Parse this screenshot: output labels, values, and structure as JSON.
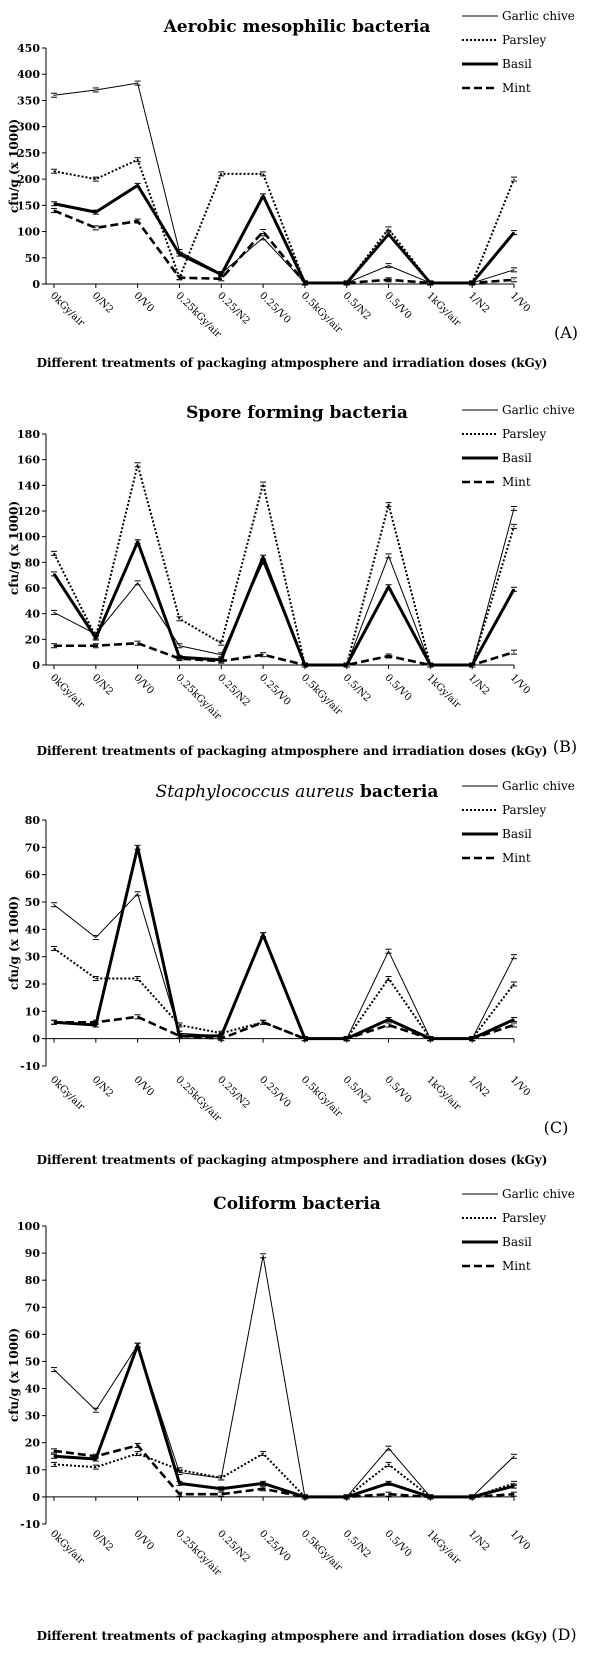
{
  "chart_data": [
    {
      "type": "line",
      "panel_label": "(A)",
      "title": "Aerobic mesophilic bacteria",
      "ylabel": "cfu/g (x 1000)",
      "xlabel": "Different treatments of packaging atmposphere and irradiation doses (kGy)",
      "ylim": [
        0,
        450
      ],
      "yticks": [
        0,
        50,
        100,
        150,
        200,
        250,
        300,
        350,
        400,
        450
      ],
      "categories": [
        "0kGy/air",
        "0/N2",
        "0/V0",
        "0.25kGy/air",
        "0.25/N2",
        "0.25/V0",
        "0.5kGy/air",
        "0.5/N2",
        "0.5/V0",
        "1kGy/air",
        "1/N2",
        "1/V0"
      ],
      "legend_position": "top-right",
      "series": [
        {
          "name": "Garlic chive",
          "style": "thin-solid",
          "values": [
            360,
            370,
            383,
            62,
            20,
            88,
            2,
            2,
            35,
            2,
            2,
            27
          ]
        },
        {
          "name": "Parsley",
          "style": "dotted",
          "values": [
            215,
            200,
            237,
            12,
            210,
            210,
            2,
            2,
            105,
            2,
            2,
            200
          ]
        },
        {
          "name": "Basil",
          "style": "thick-solid",
          "values": [
            153,
            137,
            188,
            57,
            18,
            168,
            2,
            2,
            95,
            2,
            2,
            98
          ]
        },
        {
          "name": "Mint",
          "style": "dashed",
          "values": [
            140,
            107,
            120,
            12,
            10,
            100,
            2,
            2,
            8,
            2,
            2,
            8
          ]
        }
      ]
    },
    {
      "type": "line",
      "panel_label": "(B)",
      "title": "Spore forming bacteria",
      "ylabel": "cfu/g (x 1000)",
      "xlabel": "Different treatments of packaging atmposphere and irradiation doses (kGy)",
      "ylim": [
        0,
        180
      ],
      "yticks": [
        0,
        20,
        40,
        60,
        80,
        100,
        120,
        140,
        160,
        180
      ],
      "categories": [
        "0kGy/air",
        "0/N2",
        "0/V0",
        "0.25kGy/air",
        "0.25/N2",
        "0.25/V0",
        "0.5kGy/air",
        "0.5/N2",
        "0.5/V0",
        "1kGy/air",
        "1/N2",
        "1/V0"
      ],
      "legend_position": "top-right",
      "series": [
        {
          "name": "Garlic chive",
          "style": "thin-solid",
          "values": [
            41,
            24,
            64,
            15,
            8,
            80,
            0,
            0,
            85,
            0,
            0,
            122
          ]
        },
        {
          "name": "Parsley",
          "style": "dotted",
          "values": [
            87,
            22,
            156,
            36,
            17,
            141,
            0,
            0,
            125,
            0,
            0,
            108
          ]
        },
        {
          "name": "Basil",
          "style": "thick-solid",
          "values": [
            71,
            21,
            96,
            6,
            4,
            84,
            0,
            0,
            61,
            0,
            0,
            59
          ]
        },
        {
          "name": "Mint",
          "style": "dashed",
          "values": [
            15,
            15,
            17,
            5,
            3,
            8,
            0,
            0,
            7,
            0,
            0,
            10
          ]
        }
      ]
    },
    {
      "type": "line",
      "panel_label": "(C)",
      "title_italic": "Staphylococcus aureus",
      "title": " bacteria",
      "ylabel": "cfu/g (x 1000)",
      "xlabel": "Different treatments of packaging atmposphere and irradiation doses (kGy)",
      "ylim": [
        -10,
        80
      ],
      "yticks": [
        -10,
        0,
        10,
        20,
        30,
        40,
        50,
        60,
        70,
        80
      ],
      "categories": [
        "0kGy/air",
        "0/N2",
        "0/V0",
        "0.25kGy/air",
        "0.25/N2",
        "0.25/V0",
        "0.5kGy/air",
        "0.5/N2",
        "0.5/V0",
        "1kGy/air",
        "1/N2",
        "1/V0"
      ],
      "legend_position": "top-right",
      "series": [
        {
          "name": "Garlic chive",
          "style": "thin-solid",
          "values": [
            49,
            37,
            53,
            2,
            1,
            38,
            0,
            0,
            32,
            0,
            0,
            30
          ]
        },
        {
          "name": "Parsley",
          "style": "dotted",
          "values": [
            33,
            22,
            22,
            5,
            2,
            6,
            0,
            0,
            22,
            0,
            0,
            20
          ]
        },
        {
          "name": "Basil",
          "style": "thick-solid",
          "values": [
            6,
            5,
            70,
            1,
            1,
            38,
            0,
            0,
            7,
            0,
            0,
            7
          ]
        },
        {
          "name": "Mint",
          "style": "dashed",
          "values": [
            6,
            6,
            8,
            1,
            0,
            6,
            0,
            0,
            5,
            0,
            0,
            5
          ]
        }
      ]
    },
    {
      "type": "line",
      "panel_label": "(D)",
      "title": "Coliform bacteria",
      "ylabel": "cfu/g (x 1000)",
      "xlabel": "Different treatments of packaging atmposphere and irradiation doses (kGy)",
      "ylim": [
        -10,
        100
      ],
      "yticks": [
        -10,
        0,
        10,
        20,
        30,
        40,
        50,
        60,
        70,
        80,
        90,
        100
      ],
      "categories": [
        "0kGy/air",
        "0/N2",
        "0/V0",
        "0.25kGy/air",
        "0.25/N2",
        "0.25/V0",
        "0.5kGy/air",
        "0.5/N2",
        "0.5/V0",
        "1kGy/air",
        "1/N2",
        "1/V0"
      ],
      "legend_position": "top-right",
      "series": [
        {
          "name": "Garlic chive",
          "style": "thin-solid",
          "values": [
            47,
            32,
            56,
            9,
            7,
            89,
            0,
            0,
            18,
            0,
            0,
            15
          ]
        },
        {
          "name": "Parsley",
          "style": "dotted",
          "values": [
            12,
            11,
            16,
            10,
            7,
            16,
            0,
            0,
            12,
            0,
            0,
            5
          ]
        },
        {
          "name": "Basil",
          "style": "thick-solid",
          "values": [
            15,
            14,
            56,
            5,
            3,
            5,
            0,
            0,
            5,
            0,
            0,
            4
          ]
        },
        {
          "name": "Mint",
          "style": "dashed",
          "values": [
            17,
            15,
            19,
            1,
            1,
            3,
            0,
            0,
            1,
            0,
            0,
            1
          ]
        }
      ]
    }
  ]
}
